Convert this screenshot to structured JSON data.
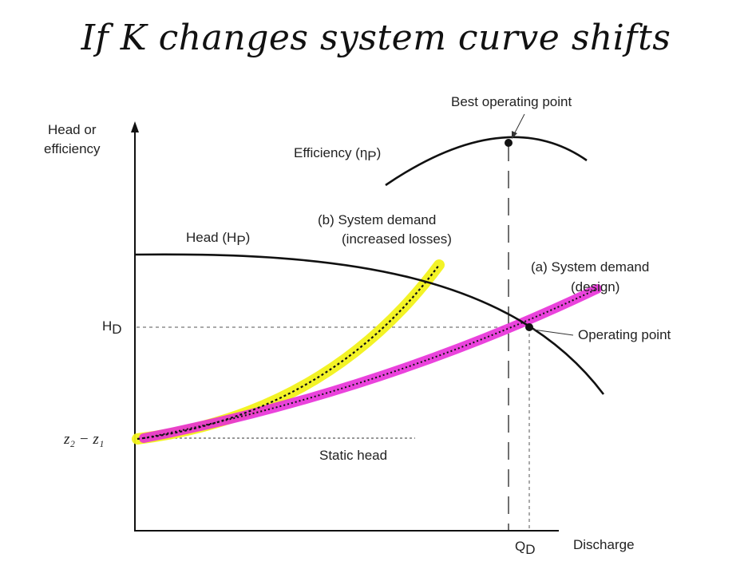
{
  "title": "If K changes system curve shifts",
  "diagram": {
    "y_axis_label_line1": "Head or",
    "y_axis_label_line2": "efficiency",
    "x_axis_label": "Discharge",
    "head_curve_label": "Head (",
    "head_curve_symbol": "H",
    "head_curve_symbol_sub": "P",
    "head_curve_label_end": ")",
    "efficiency_label": "Efficiency (",
    "efficiency_symbol": "η",
    "efficiency_symbol_sub": "P",
    "efficiency_label_end": ")",
    "best_operating_point_label": "Best operating point",
    "system_b_line1": "(b) System demand",
    "system_b_line2": "(increased losses)",
    "system_a_line1": "(a) System demand",
    "system_a_line2": "(design)",
    "operating_point_label": "Operating point",
    "static_head_label": "Static head",
    "hd_symbol": "H",
    "hd_sub": "D",
    "qd_symbol": "Q",
    "qd_sub": "D",
    "static_tick_label": "z₂ − z₁",
    "colors": {
      "curve": "#111111",
      "highlight_b": "#f2f21a",
      "highlight_a": "#e82fd8",
      "guide": "#555555"
    }
  }
}
